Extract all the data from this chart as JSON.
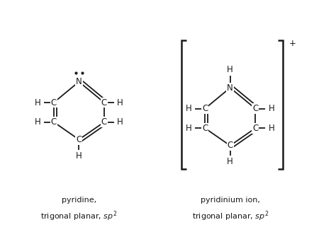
{
  "bg_color": "#ffffff",
  "text_color": "#1a1a1a",
  "line_color": "#1a1a1a",
  "font_size": 8.5,
  "label_font_size": 8.0,
  "fig_width": 4.74,
  "fig_height": 3.21,
  "caption1": "pyridine,\ntrigonal planar, $\\mathit{sp}^2$",
  "caption2": "pyridinium ion,\ntrigonal planar, $\\mathit{sp}^2$",
  "xlim": [
    0,
    10
  ],
  "ylim": [
    0,
    6.75
  ]
}
